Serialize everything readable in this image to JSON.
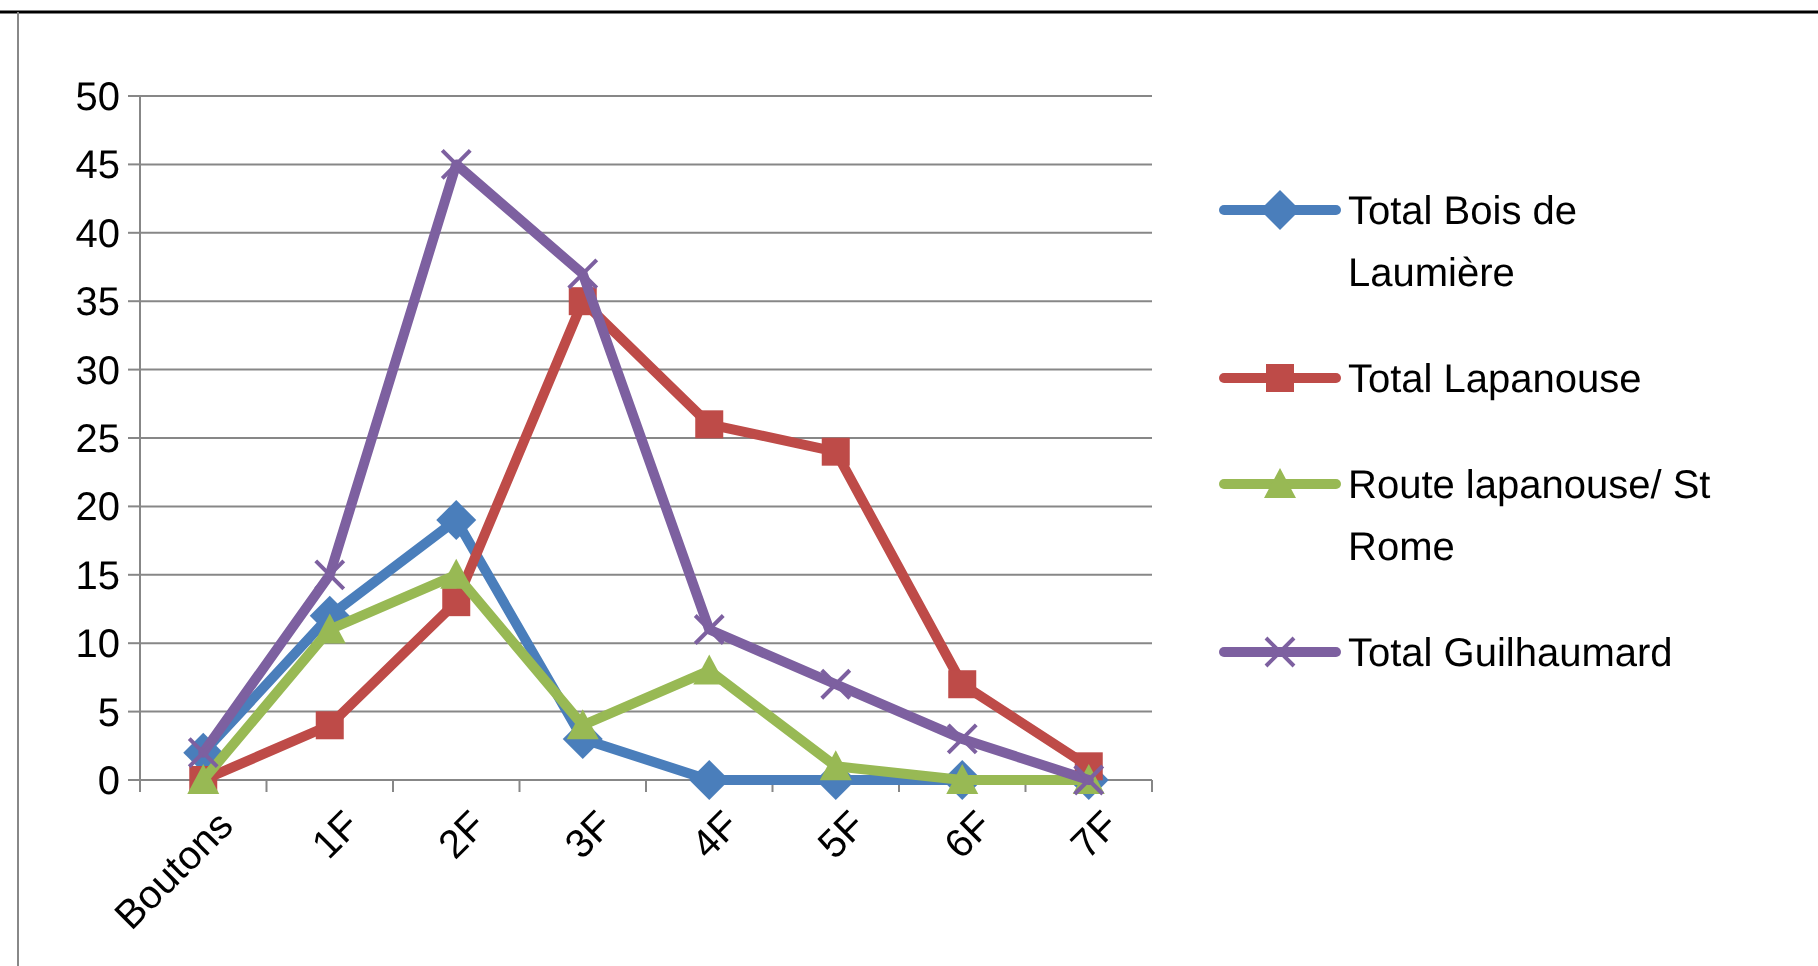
{
  "chart_data": {
    "type": "line",
    "categories": [
      "Boutons",
      "1F",
      "2F",
      "3F",
      "4F",
      "5F",
      "6F",
      "7F"
    ],
    "series": [
      {
        "name": "Total Bois de Laumière",
        "color": "#4a7ebb",
        "marker": "diamond",
        "values": [
          2,
          12,
          19,
          3,
          0,
          0,
          0,
          0
        ]
      },
      {
        "name": "Total Lapanouse",
        "color": "#be4b48",
        "marker": "square",
        "values": [
          0,
          4,
          13,
          35,
          26,
          24,
          7,
          1
        ]
      },
      {
        "name": "Route lapanouse/ St Rome",
        "color": "#98b954",
        "marker": "triangle",
        "values": [
          0,
          11,
          15,
          4,
          8,
          1,
          0,
          0
        ]
      },
      {
        "name": "Total Guilhaumard",
        "color": "#7d60a0",
        "marker": "cross",
        "values": [
          2,
          15,
          45,
          37,
          11,
          7,
          3,
          0
        ]
      }
    ],
    "ylim": [
      0,
      50
    ],
    "yticks": [
      0,
      5,
      10,
      15,
      20,
      25,
      30,
      35,
      40,
      45,
      50
    ],
    "grid": "y",
    "legend": "right",
    "line_style": "solid"
  }
}
